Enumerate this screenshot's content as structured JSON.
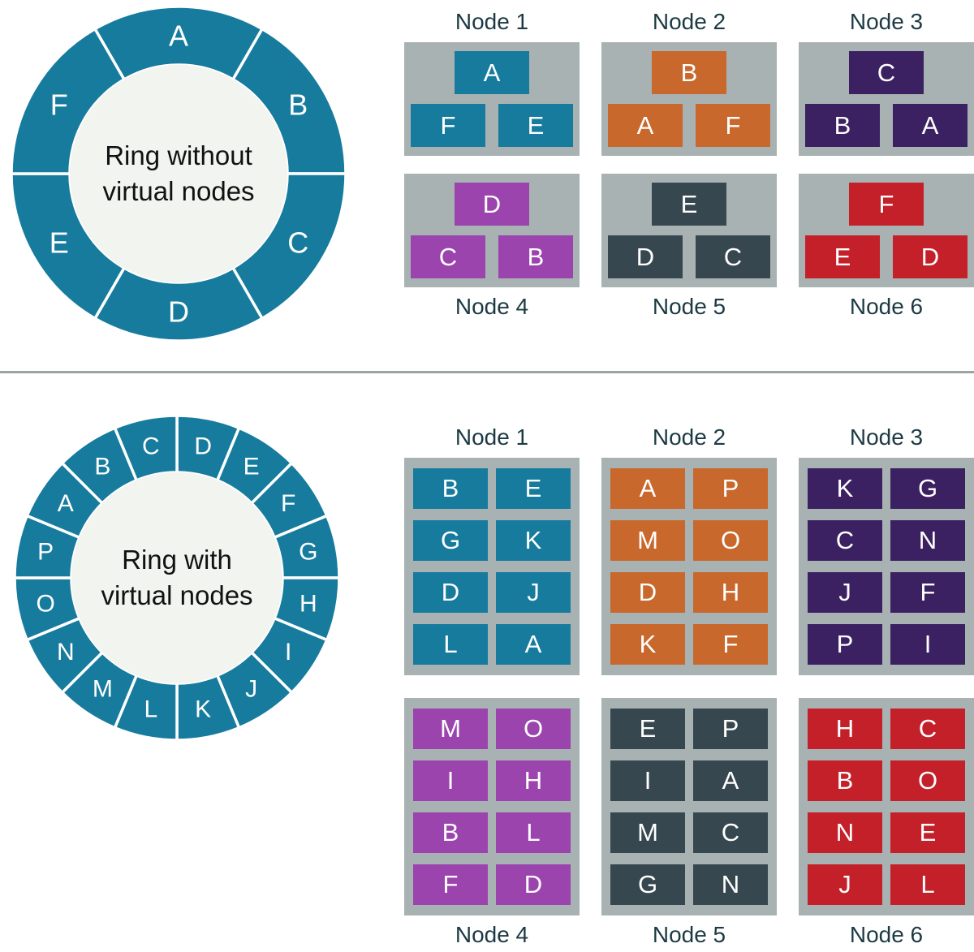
{
  "top_section": {
    "ring": {
      "label_line1": "Ring without",
      "label_line2": "virtual nodes",
      "segments": [
        "A",
        "B",
        "C",
        "D",
        "E",
        "F"
      ],
      "fill": "#177B9E",
      "inner_fill": "#F2F4F0"
    },
    "nodes": [
      {
        "label": "Node 1",
        "color": "#177B9E",
        "primary": "A",
        "replicas": [
          "F",
          "E"
        ]
      },
      {
        "label": "Node 2",
        "color": "#C8682C",
        "primary": "B",
        "replicas": [
          "A",
          "F"
        ]
      },
      {
        "label": "Node 3",
        "color": "#3B2161",
        "primary": "C",
        "replicas": [
          "B",
          "A"
        ]
      },
      {
        "label": "Node 4",
        "color": "#9C44AE",
        "primary": "D",
        "replicas": [
          "C",
          "B"
        ]
      },
      {
        "label": "Node 5",
        "color": "#37474F",
        "primary": "E",
        "replicas": [
          "D",
          "C"
        ]
      },
      {
        "label": "Node 6",
        "color": "#C4202A",
        "primary": "F",
        "replicas": [
          "E",
          "D"
        ]
      }
    ]
  },
  "bottom_section": {
    "ring": {
      "label_line1": "Ring with",
      "label_line2": "virtual nodes",
      "segments": [
        "D",
        "E",
        "F",
        "G",
        "H",
        "I",
        "J",
        "K",
        "L",
        "M",
        "N",
        "O",
        "P",
        "A",
        "B",
        "C"
      ],
      "fill": "#177B9E",
      "inner_fill": "#F2F4F0"
    },
    "nodes": [
      {
        "label": "Node 1",
        "color": "#177B9E",
        "cells": [
          "B",
          "E",
          "G",
          "K",
          "D",
          "J",
          "L",
          "A"
        ]
      },
      {
        "label": "Node 2",
        "color": "#C8682C",
        "cells": [
          "A",
          "P",
          "M",
          "O",
          "D",
          "H",
          "K",
          "F"
        ]
      },
      {
        "label": "Node 3",
        "color": "#3B2161",
        "cells": [
          "K",
          "G",
          "C",
          "N",
          "J",
          "F",
          "P",
          "I"
        ]
      },
      {
        "label": "Node 4",
        "color": "#9C44AE",
        "cells": [
          "M",
          "O",
          "I",
          "H",
          "B",
          "L",
          "F",
          "D"
        ]
      },
      {
        "label": "Node 5",
        "color": "#37474F",
        "cells": [
          "E",
          "P",
          "I",
          "A",
          "M",
          "C",
          "G",
          "N"
        ]
      },
      {
        "label": "Node 6",
        "color": "#C4202A",
        "cells": [
          "H",
          "C",
          "B",
          "O",
          "N",
          "E",
          "J",
          "L"
        ]
      }
    ]
  },
  "styles": {
    "container_gray": "#A9B2B2",
    "node_label_color": "#1C3A44",
    "divider_color": "#9BA3A4",
    "ring_divider_color": "#FFFFFF"
  }
}
